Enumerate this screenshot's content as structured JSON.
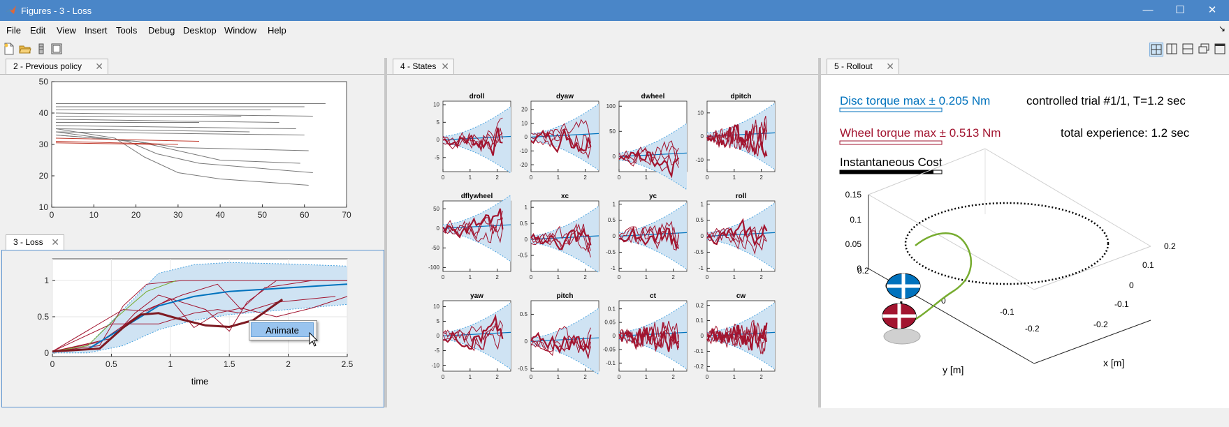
{
  "window": {
    "title": "Figures - 3 - Loss",
    "minimize": "—",
    "maximize": "☐",
    "close": "✕"
  },
  "menubar": {
    "items": [
      "File",
      "Edit",
      "View",
      "Insert",
      "Tools",
      "Debug",
      "Desktop",
      "Window",
      "Help"
    ],
    "dock_arrow": "↘"
  },
  "panels": {
    "previous_policy": {
      "tab": "2 - Previous policy",
      "close": "✕"
    },
    "loss": {
      "tab": "3 - Loss",
      "close": "✕",
      "xlabel": "time"
    },
    "states": {
      "tab": "4 - States",
      "close": "✕"
    },
    "rollout": {
      "tab": "5 - Rollout",
      "close": "✕",
      "disc_torque": "Disc torque    max ± 0.205 Nm",
      "controlled_trial": "controlled trial #1/1, T=1.2 sec",
      "wheel_torque": "Wheel torque max ± 0.513 Nm",
      "total_experience": "total experience: 1.2 sec",
      "inst_cost": "Instantaneous Cost",
      "xlabel": "x [m]",
      "ylabel": "y [m]"
    }
  },
  "context_menu": {
    "item": "Animate"
  },
  "colors": {
    "blue": "#0072bd",
    "red": "#a2142f",
    "green": "#77ac30",
    "band": "#cfe3f3",
    "titlebar": "#4a86c8"
  },
  "chart_data": [
    {
      "type": "line",
      "panel": "2 - Previous policy",
      "xlim": [
        0,
        70
      ],
      "ylim": [
        10,
        50
      ],
      "xticks": [
        0,
        10,
        20,
        30,
        40,
        50,
        60,
        70
      ],
      "yticks": [
        10,
        20,
        30,
        40,
        50
      ],
      "series": [
        {
          "color": "gray",
          "points": [
            [
              1,
              43
            ],
            [
              65,
              43
            ]
          ]
        },
        {
          "color": "gray",
          "points": [
            [
              1,
              42
            ],
            [
              60,
              42
            ]
          ]
        },
        {
          "color": "gray",
          "points": [
            [
              1,
              41
            ],
            [
              52,
              41
            ]
          ]
        },
        {
          "color": "gray",
          "points": [
            [
              1,
              40
            ],
            [
              62,
              39
            ]
          ]
        },
        {
          "color": "gray",
          "points": [
            [
              1,
              39
            ],
            [
              45,
              39
            ]
          ]
        },
        {
          "color": "gray",
          "points": [
            [
              1,
              38
            ],
            [
              54,
              37
            ]
          ]
        },
        {
          "color": "gray",
          "points": [
            [
              1,
              37
            ],
            [
              35,
              37
            ]
          ]
        },
        {
          "color": "gray",
          "points": [
            [
              1,
              36
            ],
            [
              58,
              35
            ]
          ]
        },
        {
          "color": "gray",
          "points": [
            [
              1,
              35
            ],
            [
              47,
              34
            ]
          ]
        },
        {
          "color": "gray",
          "points": [
            [
              1,
              34
            ],
            [
              60,
              33
            ]
          ]
        },
        {
          "color": "gray",
          "points": [
            [
              1,
              33
            ],
            [
              20,
              31
            ],
            [
              30,
              29
            ],
            [
              61,
              28
            ]
          ]
        },
        {
          "color": "gray",
          "points": [
            [
              1,
              33
            ],
            [
              20,
              31
            ],
            [
              30,
              28
            ],
            [
              40,
              25
            ],
            [
              59,
              24
            ]
          ]
        },
        {
          "color": "gray",
          "points": [
            [
              1,
              34
            ],
            [
              18,
              31
            ],
            [
              25,
              27
            ],
            [
              35,
              24
            ],
            [
              62,
              21
            ]
          ]
        },
        {
          "color": "gray",
          "points": [
            [
              1,
              35
            ],
            [
              15,
              32
            ],
            [
              22,
              26
            ],
            [
              30,
              21
            ],
            [
              40,
              19
            ],
            [
              61,
              17
            ]
          ]
        },
        {
          "color": "red",
          "points": [
            [
              1,
              32
            ],
            [
              35,
              31
            ]
          ]
        },
        {
          "color": "red",
          "points": [
            [
              1,
              31
            ],
            [
              30,
              30
            ]
          ]
        },
        {
          "color": "red",
          "points": [
            [
              1,
              30.5
            ],
            [
              25,
              30
            ]
          ]
        }
      ]
    },
    {
      "type": "line",
      "panel": "3 - Loss",
      "xlabel": "time",
      "xlim": [
        0,
        2.5
      ],
      "ylim": [
        -0.05,
        1.3
      ],
      "xticks": [
        0,
        0.5,
        1,
        1.5,
        2,
        2.5
      ],
      "yticks": [
        0,
        0.5,
        1
      ],
      "band_upper": [
        [
          0,
          0.02
        ],
        [
          0.3,
          0.1
        ],
        [
          0.6,
          0.6
        ],
        [
          0.9,
          1.1
        ],
        [
          1.2,
          1.22
        ],
        [
          1.5,
          1.25
        ],
        [
          2,
          1.23
        ],
        [
          2.5,
          1.2
        ]
      ],
      "band_lower": [
        [
          0,
          0
        ],
        [
          0.3,
          0
        ],
        [
          0.6,
          0.1
        ],
        [
          0.9,
          0.32
        ],
        [
          1.2,
          0.45
        ],
        [
          1.5,
          0.53
        ],
        [
          2,
          0.6
        ],
        [
          2.5,
          0.67
        ]
      ],
      "mean": [
        [
          0,
          0.02
        ],
        [
          0.3,
          0.05
        ],
        [
          0.6,
          0.35
        ],
        [
          0.9,
          0.65
        ],
        [
          1.2,
          0.78
        ],
        [
          1.5,
          0.85
        ],
        [
          2,
          0.9
        ],
        [
          2.5,
          0.95
        ]
      ],
      "trial_thick": [
        [
          0,
          0.02
        ],
        [
          0.4,
          0.06
        ],
        [
          0.6,
          0.35
        ],
        [
          0.75,
          0.53
        ],
        [
          0.9,
          0.55
        ],
        [
          1.05,
          0.48
        ],
        [
          1.3,
          0.38
        ],
        [
          1.5,
          0.36
        ],
        [
          1.7,
          0.45
        ],
        [
          1.95,
          0.74
        ]
      ],
      "rollouts": [
        [
          [
            0,
            0.02
          ],
          [
            0.4,
            0.1
          ],
          [
            0.6,
            0.65
          ],
          [
            0.8,
            0.95
          ],
          [
            1.1,
            1
          ],
          [
            1.5,
            1
          ],
          [
            2,
            1
          ],
          [
            2.5,
            1
          ]
        ],
        [
          [
            0,
            0.02
          ],
          [
            0.5,
            0.2
          ],
          [
            0.7,
            0.55
          ],
          [
            0.9,
            0.8
          ],
          [
            1.3,
            0.6
          ],
          [
            1.5,
            0.3
          ],
          [
            1.65,
            0.7
          ],
          [
            1.9,
            1
          ],
          [
            2.5,
            1
          ]
        ],
        [
          [
            0,
            0.02
          ],
          [
            0.4,
            0.15
          ],
          [
            0.8,
            0.6
          ],
          [
            1.1,
            0.8
          ],
          [
            1.4,
            0.95
          ],
          [
            1.6,
            0.6
          ],
          [
            1.8,
            0.9
          ],
          [
            2.2,
            1
          ]
        ],
        [
          [
            0,
            0.02
          ],
          [
            0.5,
            0.4
          ],
          [
            0.9,
            0.4
          ],
          [
            1.2,
            0.55
          ],
          [
            1.4,
            0.6
          ],
          [
            1.6,
            0.55
          ],
          [
            1.9,
            0.7
          ],
          [
            2.4,
            0.78
          ]
        ],
        [
          [
            0,
            0.02
          ],
          [
            0.6,
            0.6
          ],
          [
            0.8,
            0.58
          ],
          [
            1,
            0.75
          ],
          [
            1.2,
            0.35
          ],
          [
            1.4,
            0.55
          ],
          [
            1.6,
            0.62
          ],
          [
            1.9,
            0.5
          ],
          [
            2.2,
            0.62
          ],
          [
            2.5,
            0.78
          ]
        ]
      ],
      "green": [
        [
          0,
          0.02
        ],
        [
          0.3,
          0.1
        ],
        [
          0.55,
          0.5
        ],
        [
          0.8,
          0.85
        ],
        [
          1.05,
          1
        ]
      ]
    },
    {
      "type": "line",
      "panel": "4 - States",
      "subplots": [
        {
          "title": "droll",
          "yticks": [
            -5,
            0,
            5,
            10
          ],
          "ylim": [
            -9,
            11
          ]
        },
        {
          "title": "dyaw",
          "yticks": [
            -20,
            -10,
            0,
            10,
            20
          ],
          "ylim": [
            -25,
            26
          ]
        },
        {
          "title": "dwheel",
          "yticks": [
            0,
            50,
            100
          ],
          "ylim": [
            -30,
            110
          ]
        },
        {
          "title": "dpitch",
          "yticks": [
            -10,
            0,
            10
          ],
          "ylim": [
            -15,
            15
          ]
        },
        {
          "title": "dflywheel",
          "yticks": [
            -100,
            -50,
            0,
            50
          ],
          "ylim": [
            -110,
            70
          ]
        },
        {
          "title": "xc",
          "yticks": [
            -0.5,
            0,
            0.5,
            1
          ],
          "ylim": [
            -1,
            1.2
          ]
        },
        {
          "title": "yc",
          "yticks": [
            -1,
            -0.5,
            0,
            0.5,
            1
          ],
          "ylim": [
            -1.1,
            1.1
          ]
        },
        {
          "title": "roll",
          "yticks": [
            -1,
            -0.5,
            0,
            0.5,
            1
          ],
          "ylim": [
            -1.1,
            1.1
          ]
        },
        {
          "title": "yaw",
          "yticks": [
            -10,
            -5,
            0,
            5,
            10
          ],
          "ylim": [
            -12,
            12
          ]
        },
        {
          "title": "pitch",
          "yticks": [
            -0.5,
            0,
            0.5
          ],
          "ylim": [
            -0.55,
            0.75
          ]
        },
        {
          "title": "ct",
          "yticks": [
            -0.1,
            -0.05,
            0,
            0.05,
            0.1
          ],
          "ylim": [
            -0.13,
            0.13
          ]
        },
        {
          "title": "cw",
          "yticks": [
            -0.2,
            -0.1,
            0,
            0.1,
            0.2
          ],
          "ylim": [
            -0.23,
            0.23
          ]
        }
      ],
      "xticks": [
        0,
        1,
        2
      ],
      "xlim": [
        0,
        2.5
      ]
    },
    {
      "type": "line",
      "panel": "5 - Rollout",
      "xlabel": "x [m]",
      "ylabel": "y [m]",
      "zticks": [
        0,
        0.05,
        0.1,
        0.15
      ],
      "xticks": [
        0.2,
        0.1,
        0,
        -0.1,
        -0.2
      ],
      "yticks": [
        0.2,
        0.1,
        0,
        -0.1,
        -0.2
      ]
    }
  ]
}
